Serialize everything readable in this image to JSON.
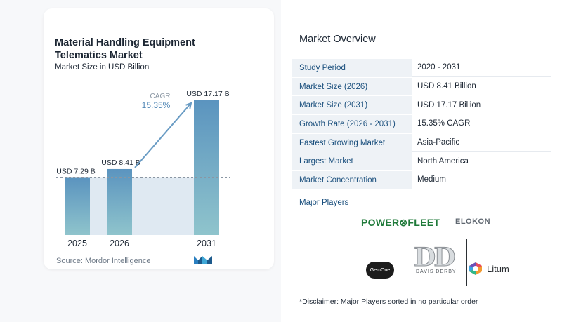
{
  "chart_data": {
    "type": "bar",
    "title": "Material Handling Equipment Telematics Market",
    "subtitle": "Market Size in USD Billion",
    "categories": [
      "2025",
      "2026",
      "2031"
    ],
    "values": [
      7.29,
      8.41,
      17.17
    ],
    "data_labels": [
      "USD 7.29 B",
      "USD 8.41 B",
      "USD 17.17 B"
    ],
    "ylim": [
      0,
      17.17
    ],
    "annotation": {
      "label": "CAGR",
      "value": "15.35%"
    },
    "colors": {
      "bar_top": "#5b94bf",
      "bar_bottom": "#8fc4cc",
      "baseline_fill": "#dfe9f2",
      "arrow": "#6a9cc4",
      "dashed": "#8a96a3"
    }
  },
  "source": "Source:  Mordor Intelligence",
  "overview": {
    "title": "Market Overview",
    "rows": [
      {
        "label": "Study Period",
        "value": "2020 - 2031"
      },
      {
        "label": "Market Size (2026)",
        "value": "USD 8.41 Billion"
      },
      {
        "label": "Market Size (2031)",
        "value": "USD 17.17 Billion"
      },
      {
        "label": "Growth Rate (2026 - 2031)",
        "value": "15.35% CAGR"
      },
      {
        "label": "Fastest Growing Market",
        "value": "Asia-Pacific"
      },
      {
        "label": "Largest Market",
        "value": "North America"
      },
      {
        "label": "Market Concentration",
        "value": "Medium"
      }
    ]
  },
  "players": {
    "title": "Major Players",
    "logos": [
      "POWERFLEET",
      "ELOKON",
      "GemOne",
      "DAVIS DERBY",
      "Litum"
    ],
    "dd_mark": "DD",
    "powerfleet_text": "POWER⊗FLEET",
    "gemone_text": "GemOne"
  },
  "disclaimer": "*Disclaimer: Major Players sorted in no particular order"
}
